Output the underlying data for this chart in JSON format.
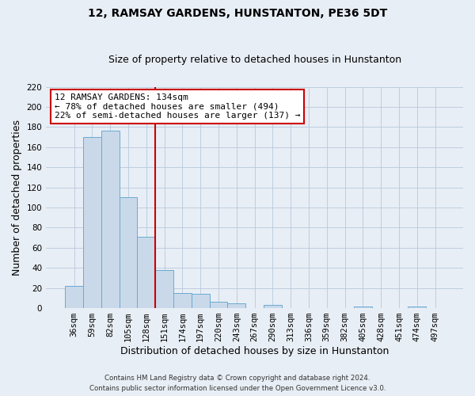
{
  "title": "12, RAMSAY GARDENS, HUNSTANTON, PE36 5DT",
  "subtitle": "Size of property relative to detached houses in Hunstanton",
  "xlabel": "Distribution of detached houses by size in Hunstanton",
  "ylabel": "Number of detached properties",
  "bar_labels": [
    "36sqm",
    "59sqm",
    "82sqm",
    "105sqm",
    "128sqm",
    "151sqm",
    "174sqm",
    "197sqm",
    "220sqm",
    "243sqm",
    "267sqm",
    "290sqm",
    "313sqm",
    "336sqm",
    "359sqm",
    "382sqm",
    "405sqm",
    "428sqm",
    "451sqm",
    "474sqm",
    "497sqm"
  ],
  "bar_values": [
    22,
    170,
    176,
    110,
    71,
    38,
    15,
    14,
    6,
    5,
    0,
    3,
    0,
    0,
    0,
    0,
    2,
    0,
    0,
    2,
    0
  ],
  "bar_color": "#c9d9ea",
  "bar_edge_color": "#6aaad4",
  "grid_color": "#b8c8dc",
  "background_color": "#e8eef5",
  "plot_background": "#e8eef5",
  "vline_x_index": 4.5,
  "vline_color": "#cc0000",
  "annotation_title": "12 RAMSAY GARDENS: 134sqm",
  "annotation_line1": "← 78% of detached houses are smaller (494)",
  "annotation_line2": "22% of semi-detached houses are larger (137) →",
  "annotation_box_color": "#ffffff",
  "annotation_border_color": "#cc0000",
  "ylim": [
    0,
    220
  ],
  "yticks": [
    0,
    20,
    40,
    60,
    80,
    100,
    120,
    140,
    160,
    180,
    200,
    220
  ],
  "footer_line1": "Contains HM Land Registry data © Crown copyright and database right 2024.",
  "footer_line2": "Contains public sector information licensed under the Open Government Licence v3.0.",
  "figsize": [
    6.0,
    5.0
  ],
  "dpi": 100
}
